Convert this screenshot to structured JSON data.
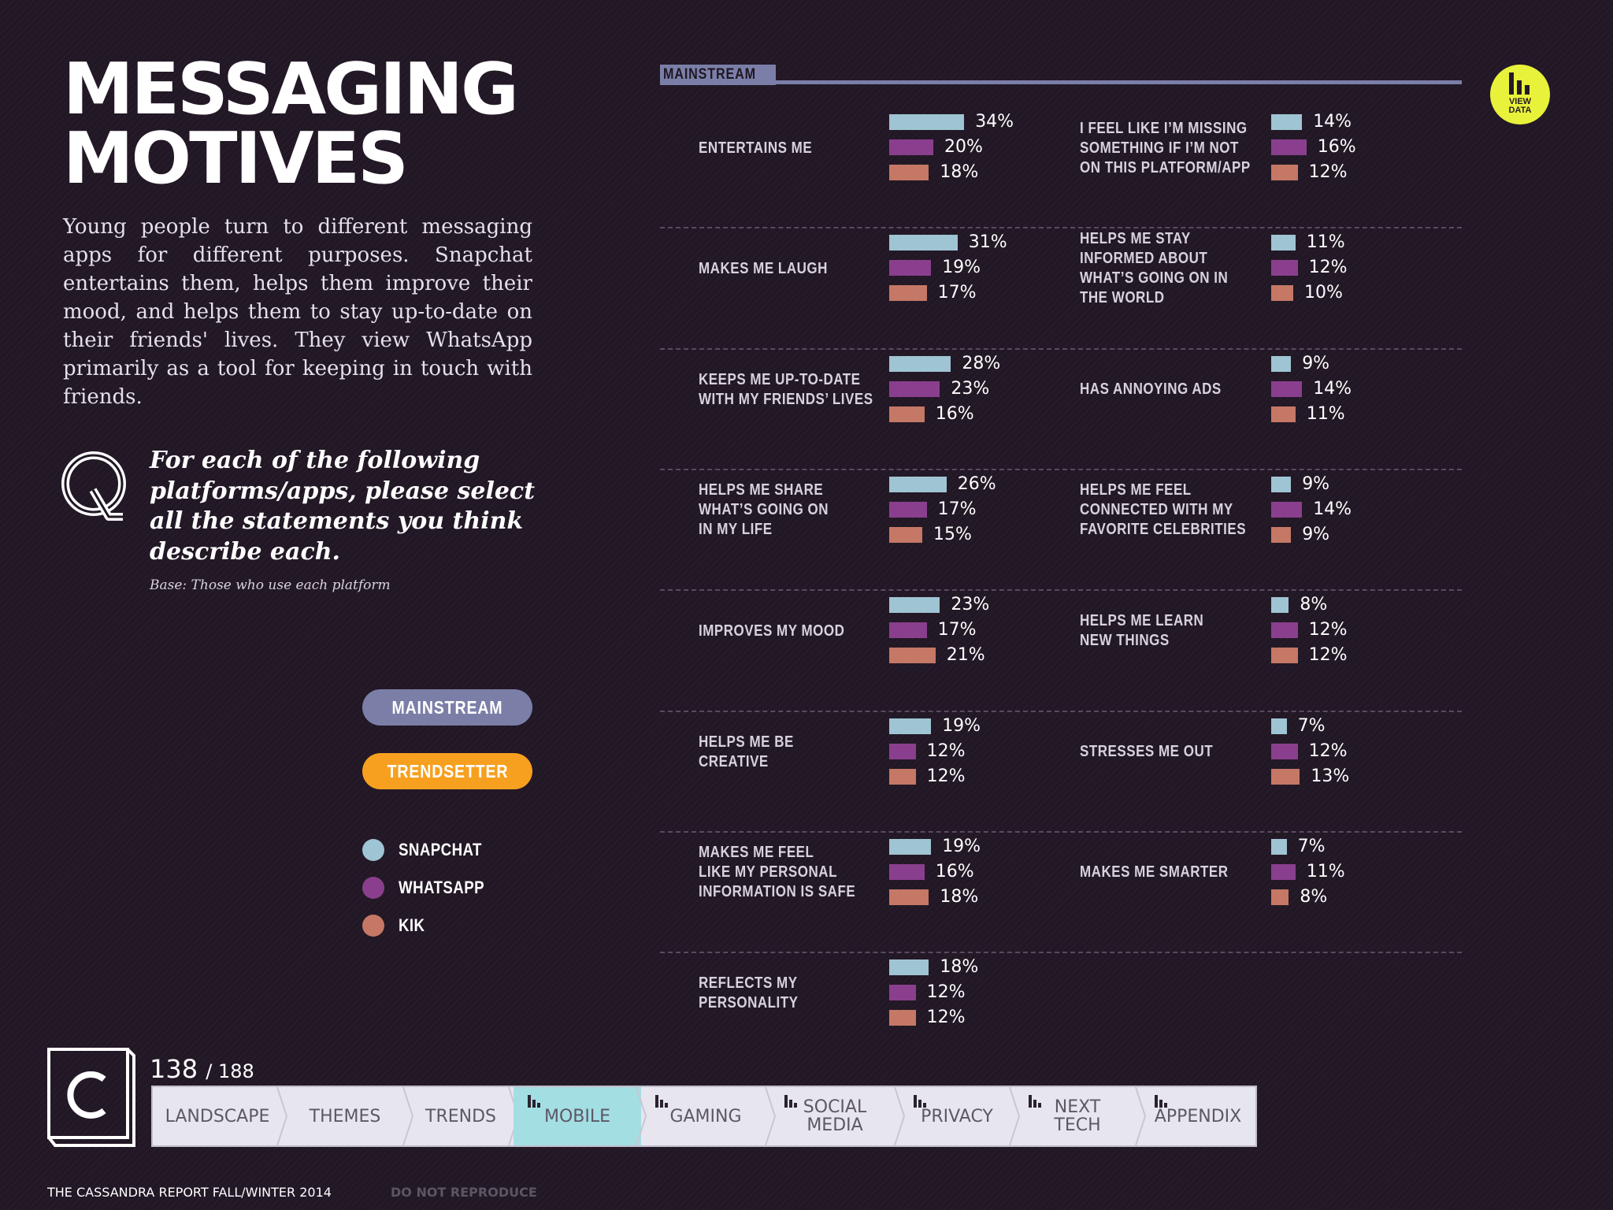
{
  "title": {
    "line1": "MESSAGING",
    "line2": "MOTIVES"
  },
  "intro": "Young people turn to different messaging apps for different purposes. Snapchat entertains them, helps them improve their mood, and helps them to stay up-to-date on their friends' lives. They view WhatsApp primarily as a tool for keeping in touch with friends.",
  "question": "For each of the following platforms/apps, please select all the statements you think describe each.",
  "base_note": "Base: Those who use each platform",
  "segment_buttons": [
    {
      "label": "MAINSTREAM",
      "color": "#7b7fa8"
    },
    {
      "label": "TRENDSETTER",
      "color": "#f7a01f"
    }
  ],
  "section_label": "MAINSTREAM",
  "view_data_label": {
    "line1": "VIEW",
    "line2": "DATA"
  },
  "colors": {
    "snapchat": "#9fc4d3",
    "whatsapp": "#8a3f8e",
    "kik": "#c47865"
  },
  "chart_data": {
    "type": "bar",
    "orientation": "horizontal",
    "segment": "MAINSTREAM",
    "series": [
      {
        "name": "SNAPCHAT",
        "color": "#9fc4d3"
      },
      {
        "name": "WHATSAPP",
        "color": "#8a3f8e"
      },
      {
        "name": "KIK",
        "color": "#c47865"
      }
    ],
    "unit": "%",
    "legend_placement": "left",
    "columns": [
      [
        {
          "label": [
            "ENTERTAINS ME"
          ],
          "values": [
            34,
            20,
            18
          ]
        },
        {
          "label": [
            "MAKES ME LAUGH"
          ],
          "values": [
            31,
            19,
            17
          ]
        },
        {
          "label": [
            "KEEPS ME UP-TO-DATE",
            "WITH MY FRIENDS’ LIVES"
          ],
          "values": [
            28,
            23,
            16
          ]
        },
        {
          "label": [
            "HELPS ME SHARE",
            "WHAT’S GOING ON",
            "IN MY LIFE"
          ],
          "values": [
            26,
            17,
            15
          ]
        },
        {
          "label": [
            "IMPROVES MY MOOD"
          ],
          "values": [
            23,
            17,
            21
          ]
        },
        {
          "label": [
            "HELPS ME BE",
            "CREATIVE"
          ],
          "values": [
            19,
            12,
            12
          ]
        },
        {
          "label": [
            "MAKES ME FEEL",
            "LIKE MY PERSONAL",
            "INFORMATION IS SAFE"
          ],
          "values": [
            19,
            16,
            18
          ]
        },
        {
          "label": [
            "REFLECTS MY",
            "PERSONALITY"
          ],
          "values": [
            18,
            12,
            12
          ]
        }
      ],
      [
        {
          "label": [
            "I FEEL LIKE I’M MISSING",
            "SOMETHING IF I’M NOT",
            "ON THIS PLATFORM/APP"
          ],
          "values": [
            14,
            16,
            12
          ]
        },
        {
          "label": [
            "HELPS ME STAY",
            "INFORMED ABOUT",
            "WHAT’S GOING ON IN",
            "THE WORLD"
          ],
          "values": [
            11,
            12,
            10
          ]
        },
        {
          "label": [
            "HAS ANNOYING ADS"
          ],
          "values": [
            9,
            14,
            11
          ]
        },
        {
          "label": [
            "HELPS ME FEEL",
            "CONNECTED WITH MY",
            "FAVORITE CELEBRITIES"
          ],
          "values": [
            9,
            14,
            9
          ]
        },
        {
          "label": [
            "HELPS ME LEARN",
            "NEW THINGS"
          ],
          "values": [
            8,
            12,
            12
          ]
        },
        {
          "label": [
            "STRESSES ME OUT"
          ],
          "values": [
            7,
            12,
            13
          ]
        },
        {
          "label": [
            "MAKES ME SMARTER"
          ],
          "values": [
            7,
            11,
            8
          ]
        }
      ]
    ]
  },
  "page": {
    "current": "138",
    "total": "/ 188"
  },
  "nav_tabs": [
    {
      "label": "LANDSCAPE",
      "icon": false,
      "active": false
    },
    {
      "label": "THEMES",
      "icon": false,
      "active": false
    },
    {
      "label": "TRENDS",
      "icon": false,
      "active": false
    },
    {
      "label": "MOBILE",
      "icon": true,
      "active": true
    },
    {
      "label": "GAMING",
      "icon": true,
      "active": false
    },
    {
      "label": "SOCIAL MEDIA",
      "icon": true,
      "active": false
    },
    {
      "label": "PRIVACY",
      "icon": true,
      "active": false
    },
    {
      "label": "NEXT TECH",
      "icon": true,
      "active": false
    },
    {
      "label": "APPENDIX",
      "icon": true,
      "active": false
    }
  ],
  "footer": {
    "report": "THE CASSANDRA REPORT FALL/WINTER 2014",
    "notice": "DO NOT REPRODUCE"
  }
}
